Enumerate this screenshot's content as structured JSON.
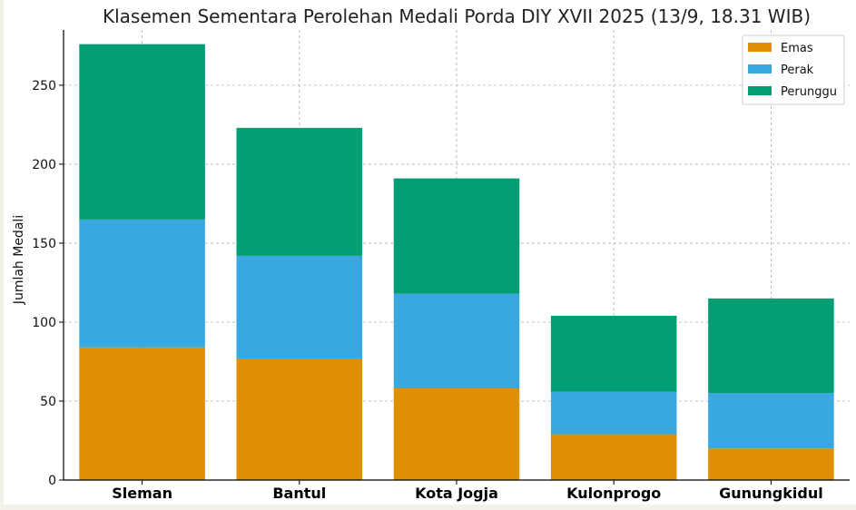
{
  "chart_data": {
    "type": "bar",
    "stacked": true,
    "title": "Klasemen Sementara Perolehan Medali Porda DIY XVII 2025 (13/9, 18.31 WIB)",
    "xlabel": "",
    "ylabel": "Jumlah Medali",
    "ylim": [
      0,
      285
    ],
    "yticks": [
      0,
      50,
      100,
      150,
      200,
      250
    ],
    "grid": true,
    "legend_position": "top-right",
    "categories": [
      "Sleman",
      "Bantul",
      "Kota Jogja",
      "Kulonprogo",
      "Gunungkidul"
    ],
    "series": [
      {
        "name": "Emas",
        "color": "#de8f05",
        "values": [
          84,
          77,
          58,
          29,
          20
        ]
      },
      {
        "name": "Perak",
        "color": "#3aa8e0",
        "values": [
          81,
          65,
          60,
          27,
          35
        ]
      },
      {
        "name": "Perunggu",
        "color": "#029e73",
        "values": [
          111,
          81,
          73,
          48,
          60
        ]
      }
    ]
  }
}
